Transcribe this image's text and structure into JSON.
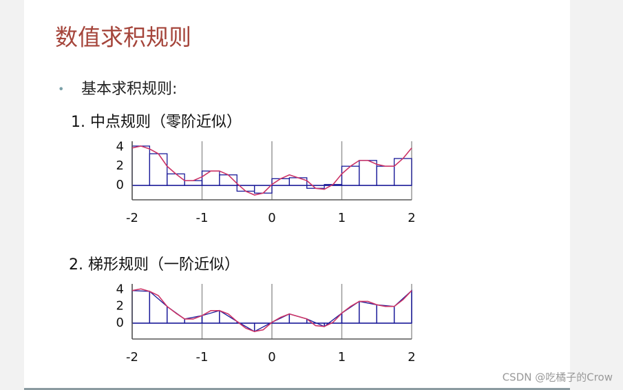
{
  "title": "数值求积规则",
  "bullet": "基本求积规则:",
  "watermark": "CSDN @吃橘子的Crow",
  "chart_data": [
    {
      "type": "midpoint",
      "title": "1. 中点规则（零阶近似）",
      "xlim": [
        -2,
        2
      ],
      "xticks": [
        -2,
        -1,
        0,
        1,
        2
      ],
      "ylim": [
        -1.5,
        4.6
      ],
      "yticks": [
        0,
        2,
        4
      ],
      "grid": true,
      "curve": {
        "color": "#cc3366",
        "x": [
          -2,
          -1.875,
          -1.75,
          -1.625,
          -1.5,
          -1.375,
          -1.25,
          -1.125,
          -1,
          -0.875,
          -0.75,
          -0.625,
          -0.5,
          -0.375,
          -0.25,
          -0.125,
          0,
          0.125,
          0.25,
          0.375,
          0.5,
          0.625,
          0.75,
          0.875,
          1,
          1.125,
          1.25,
          1.375,
          1.5,
          1.625,
          1.75,
          1.875,
          2
        ],
        "values": [
          3.9,
          4.1,
          3.8,
          3.3,
          2.0,
          1.2,
          0.5,
          0.5,
          0.9,
          1.5,
          1.5,
          1.1,
          0.2,
          -0.6,
          -1.0,
          -0.8,
          0.1,
          0.7,
          1.1,
          0.8,
          0.5,
          -0.3,
          -0.4,
          0.1,
          1.2,
          2.0,
          2.6,
          2.6,
          2.2,
          2.0,
          2.0,
          2.8,
          3.9
        ]
      },
      "bars": {
        "color": "#1a1a99",
        "bins": [
          -2,
          -1.75,
          -1.5,
          -1.25,
          -1,
          -0.75,
          -0.5,
          -0.25,
          0,
          0.25,
          0.5,
          0.75,
          1,
          1.25,
          1.5,
          1.75,
          2
        ],
        "values": [
          4.1,
          3.3,
          1.2,
          0.5,
          1.5,
          1.1,
          -0.6,
          -0.8,
          0.7,
          0.8,
          -0.3,
          0.1,
          2.0,
          2.6,
          2.0,
          2.8
        ]
      }
    },
    {
      "type": "trapezoid",
      "title": "2. 梯形规则（一阶近似）",
      "xlim": [
        -2,
        2
      ],
      "xticks": [
        -2,
        -1,
        0,
        1,
        2
      ],
      "ylim": [
        -1.9,
        4.7
      ],
      "yticks": [
        0,
        2,
        4
      ],
      "grid": true,
      "curve": {
        "color": "#cc3366",
        "x": [
          -2,
          -1.875,
          -1.75,
          -1.625,
          -1.5,
          -1.375,
          -1.25,
          -1.125,
          -1,
          -0.875,
          -0.75,
          -0.625,
          -0.5,
          -0.375,
          -0.25,
          -0.125,
          0,
          0.125,
          0.25,
          0.375,
          0.5,
          0.625,
          0.75,
          0.875,
          1,
          1.125,
          1.25,
          1.375,
          1.5,
          1.625,
          1.75,
          1.875,
          2
        ],
        "values": [
          3.9,
          4.1,
          3.8,
          3.3,
          2.0,
          1.2,
          0.5,
          0.5,
          0.9,
          1.5,
          1.5,
          1.1,
          0.2,
          -0.6,
          -1.0,
          -0.8,
          0.1,
          0.7,
          1.1,
          0.8,
          0.5,
          -0.3,
          -0.4,
          0.1,
          1.2,
          2.0,
          2.6,
          2.6,
          2.2,
          2.0,
          2.0,
          2.8,
          3.9
        ]
      },
      "bars": {
        "color": "#1a1a99",
        "x": [
          -2,
          -1.75,
          -1.5,
          -1.25,
          -1,
          -0.75,
          -0.5,
          -0.25,
          0,
          0.25,
          0.5,
          0.75,
          1,
          1.25,
          1.5,
          1.75,
          2
        ],
        "values": [
          3.9,
          3.8,
          2.0,
          0.5,
          0.9,
          1.5,
          0.2,
          -1.0,
          0.1,
          1.1,
          0.5,
          -0.4,
          1.2,
          2.6,
          2.2,
          2.0,
          3.9
        ]
      }
    }
  ]
}
